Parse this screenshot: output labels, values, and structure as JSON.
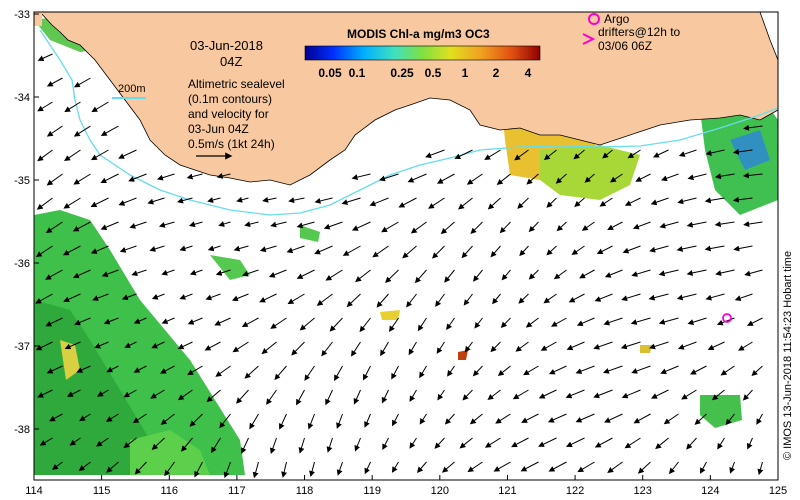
{
  "map": {
    "date": "03-Jun-2018",
    "time": "04Z",
    "legend": {
      "title": "MODIS Chl-a mg/m3 OC3",
      "ticks": [
        "0.05",
        "0.1",
        "0.25",
        "0.5",
        "1",
        "2",
        "4"
      ]
    },
    "isobath_label": "200m",
    "sealevel_note": [
      "Altimetric sealevel",
      "(0.1m contours)",
      "and velocity for",
      "03-Jun 04Z"
    ],
    "velocity_scale_label": "0.5m/s (1kt 24h)",
    "argo_label": "Argo",
    "drifters_label": [
      "drifters@12h to",
      "03/06 06Z"
    ],
    "credit": "© IMOS 13-Jun-2018 11:54:23 Hobart time",
    "x_ticks": [
      "114",
      "115",
      "116",
      "117",
      "118",
      "119",
      "120",
      "121",
      "122",
      "123",
      "124",
      "125"
    ],
    "y_ticks": [
      "-33",
      "-34",
      "-35",
      "-36",
      "-37",
      "-38"
    ],
    "colors": {
      "land": "#F8C9A0",
      "isobath": "#66DDEE",
      "argo": "#FF00CC",
      "chl_low": "#3CC44A",
      "chl_high": "#D06010"
    }
  }
}
